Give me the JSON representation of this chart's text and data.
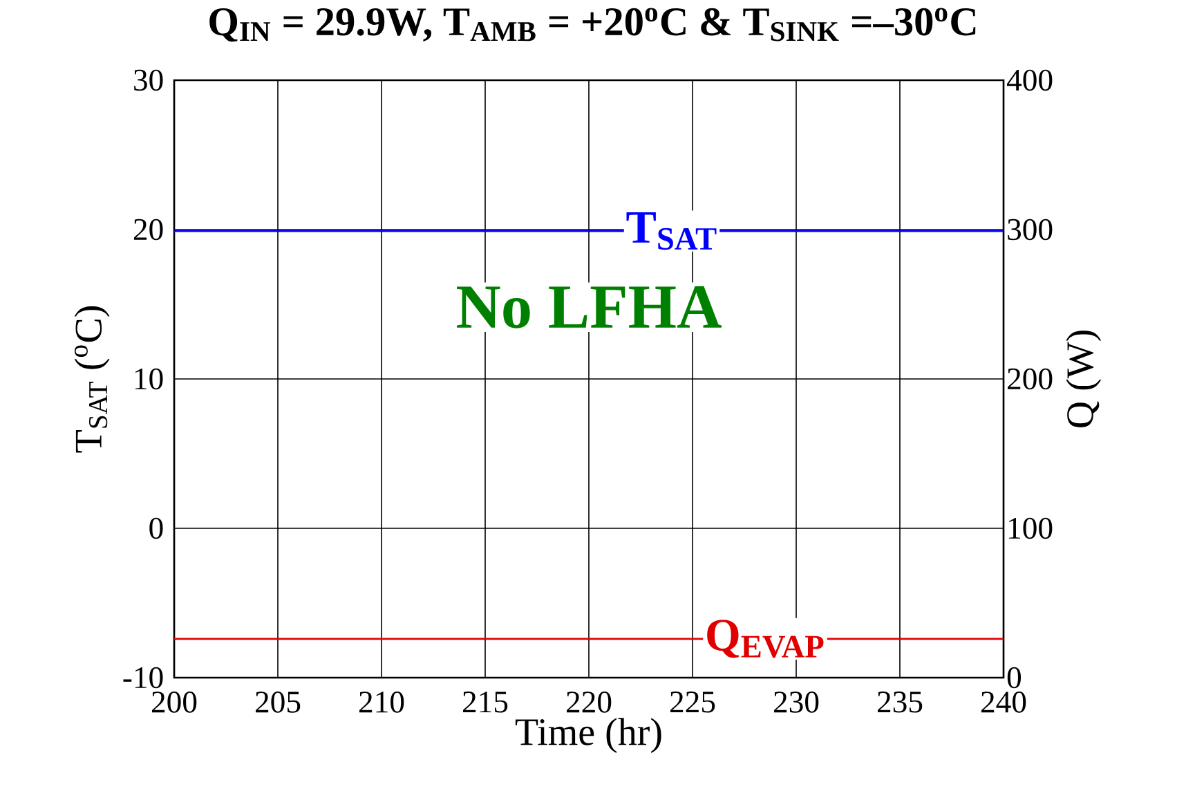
{
  "chart_data": {
    "type": "line",
    "title": "Q$_{IN}$ = 29.9W, T$_{AMB}$ = +20$^{o}$C & T$_{SINK}$ =–30$^{o}$C",
    "xlabel": "Time (hr)",
    "ylabel": "T$_{SAT}$ ($^{o}$C)",
    "y2label": "Q (W)",
    "series": [
      {
        "name": "T$_{SAT}$",
        "color": "#0000ff",
        "x": [
          200,
          205,
          210,
          215,
          220,
          228,
          235,
          240
        ],
        "values": [
          19.9,
          19.9,
          19.9,
          19.9,
          19.9,
          19.9,
          19.9,
          19.9
        ]
      },
      {
        "name": "Q$_{EVAP}$",
        "color": "#e00000",
        "axis": "y2",
        "x": [
          200,
          205,
          210,
          215,
          220,
          224,
          233,
          240
        ],
        "values": [
          26,
          26,
          26,
          26,
          26,
          26,
          26,
          26
        ]
      }
    ],
    "annotations": [
      "No LFHA"
    ],
    "xlim": [
      200,
      240
    ],
    "xticks": [
      200,
      205,
      210,
      215,
      220,
      225,
      230,
      235,
      240
    ],
    "ylim": [
      -10,
      30
    ],
    "yticks": [
      -10,
      0,
      10,
      20,
      30
    ],
    "y2lim": [
      0,
      400
    ],
    "y2ticks": [
      0,
      100,
      200,
      300,
      400
    ],
    "grid": true,
    "marker": "none",
    "line_style": "solid"
  }
}
